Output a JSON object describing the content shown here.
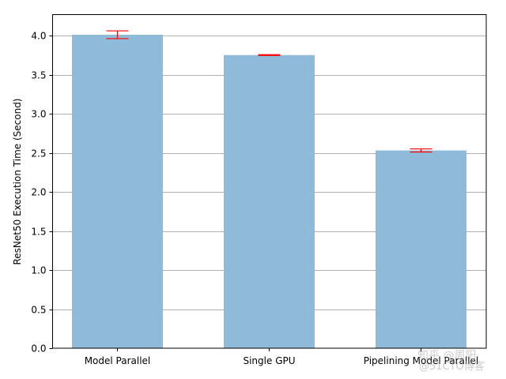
{
  "chart_data": {
    "type": "bar",
    "title": "",
    "xlabel": "",
    "ylabel": "ResNet50 Execution Time (Second)",
    "categories": [
      "Model Parallel",
      "Single GPU",
      "Pipelining Model Parallel"
    ],
    "values": [
      4.01,
      3.75,
      2.53
    ],
    "errors": [
      0.05,
      0.005,
      0.02
    ],
    "ylim": [
      0,
      4.25
    ],
    "yticks": [
      "0.0",
      "0.5",
      "1.0",
      "1.5",
      "2.0",
      "2.5",
      "3.0",
      "3.5",
      "4.0"
    ],
    "grid": "y",
    "bar_color": "#8fbad9",
    "error_color": "#ff0000",
    "grid_color": "#b0b0b0"
  },
  "watermark": {
    "line1": "知乎 @周阳",
    "line2": "@51CTO博客"
  }
}
